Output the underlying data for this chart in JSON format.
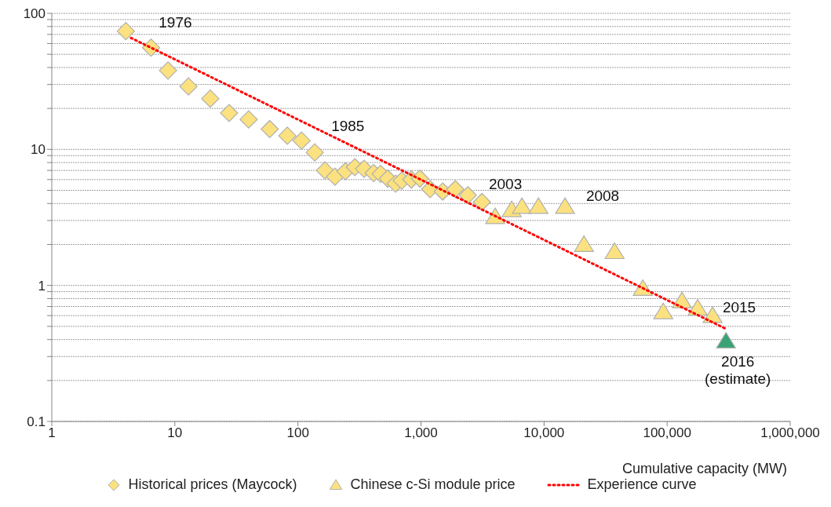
{
  "chart_data": {
    "type": "scatter",
    "xlabel": "Cumulative capacity (MW)",
    "log": "xy",
    "grid": "y",
    "legend": "bottom",
    "xlim": [
      1,
      1000000
    ],
    "xticks": [
      1,
      10,
      100,
      {
        "value": 1000,
        "label": "1,000"
      },
      {
        "value": 10000,
        "label": "10,000"
      },
      {
        "value": 100000,
        "label": "100,000"
      },
      {
        "value": 1000000,
        "label": "1,000,000"
      }
    ],
    "ylim": [
      0.1,
      100
    ],
    "yticks": [
      0.1,
      {
        "value": 0.2,
        "label": null
      },
      {
        "value": 0.3,
        "label": null
      },
      {
        "value": 0.4,
        "label": null
      },
      {
        "value": 0.5,
        "label": null
      },
      {
        "value": 0.6,
        "label": null
      },
      {
        "value": 0.7,
        "label": null
      },
      {
        "value": 0.8,
        "label": null
      },
      {
        "value": 0.9,
        "label": null
      },
      1,
      {
        "value": 2,
        "label": null
      },
      {
        "value": 3,
        "label": null
      },
      {
        "value": 4,
        "label": null
      },
      {
        "value": 5,
        "label": null
      },
      {
        "value": 6,
        "label": null
      },
      {
        "value": 7,
        "label": null
      },
      {
        "value": 8,
        "label": null
      },
      {
        "value": 9,
        "label": null
      },
      10,
      {
        "value": 20,
        "label": null
      },
      {
        "value": 30,
        "label": null
      },
      {
        "value": 40,
        "label": null
      },
      {
        "value": 50,
        "label": null
      },
      {
        "value": 60,
        "label": null
      },
      {
        "value": 70,
        "label": null
      },
      {
        "value": 80,
        "label": null
      },
      {
        "value": 90,
        "label": null
      },
      100
    ],
    "series": [
      {
        "name": "Historical prices (Maycock)",
        "marker": "diamond",
        "color": "#fbe17f",
        "x": [
          4,
          6.4,
          8.8,
          12.9,
          19.4,
          27.6,
          39.8,
          59,
          82,
          107,
          137,
          166,
          200,
          243,
          290,
          345,
          412,
          470,
          537,
          621,
          698,
          834,
          980,
          1186,
          1500,
          1897,
          2400,
          3125
        ],
        "values": [
          74,
          56,
          38,
          29,
          23.6,
          18.5,
          16.6,
          14.1,
          12.6,
          11.6,
          9.5,
          7.0,
          6.3,
          6.9,
          7.4,
          7.2,
          6.7,
          6.6,
          6.1,
          5.6,
          5.9,
          6.0,
          6.1,
          5.1,
          4.9,
          5.1,
          4.6,
          4.1
        ]
      },
      {
        "name": "Chinese c-Si module price",
        "marker": "triangle",
        "color": "#fbe17f",
        "colors": [
          "#fbe17f",
          "#fbe17f",
          "#fbe17f",
          "#fbe17f",
          "#fbe17f",
          "#fbe17f",
          "#fbe17f",
          "#fbe17f",
          "#fbe17f",
          "#fbe17f",
          "#fbe17f",
          "#fbe17f",
          "#3aa374"
        ],
        "x": [
          4010,
          5460,
          6610,
          9000,
          14800,
          21100,
          37400,
          63400,
          93000,
          132000,
          177000,
          234000,
          301000
        ],
        "values": [
          3.2,
          3.6,
          3.8,
          3.8,
          3.8,
          2.0,
          1.77,
          0.95,
          0.64,
          0.77,
          0.68,
          0.6,
          0.39
        ]
      },
      {
        "name": "Experience curve",
        "type": "line",
        "marker": "none",
        "line_style": "dotted",
        "color": "#ff0000",
        "x": [
          4.4,
          300000
        ],
        "values": [
          66,
          0.48
        ]
      }
    ],
    "annotations": [
      {
        "text": "1976",
        "x": 4,
        "y": 74
      },
      {
        "text": "1985",
        "x": 107,
        "y": 11.6
      },
      {
        "text": "2003",
        "x": 3125,
        "y": 4.1
      },
      {
        "text": "2008",
        "x": 14800,
        "y": 3.8
      },
      {
        "text": "2015",
        "x": 234000,
        "y": 0.6
      },
      {
        "text": "2016\n(estimate)",
        "x": 301000,
        "y": 0.39
      }
    ]
  }
}
